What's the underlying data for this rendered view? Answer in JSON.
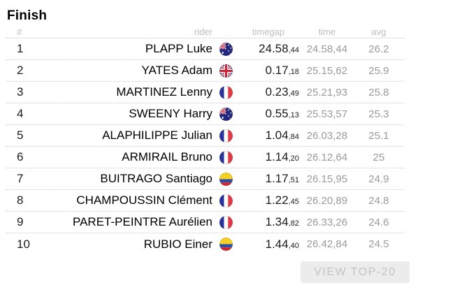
{
  "page": {
    "title": "Finish"
  },
  "table": {
    "headers": {
      "rank": "#",
      "rider": "rider",
      "timegap": "timegap",
      "time": "time",
      "avg": "avg"
    },
    "rows": [
      {
        "rank": "1",
        "rider": "PLAPP Luke",
        "country": "au",
        "country_name": "Australia",
        "timegap": "24.58",
        "timegap_dec": ",44",
        "time": "24.58,44",
        "avg": "26.2"
      },
      {
        "rank": "2",
        "rider": "YATES Adam",
        "country": "gb",
        "country_name": "Great Britain",
        "timegap": "0.17",
        "timegap_dec": ",18",
        "time": "25.15,62",
        "avg": "25.9"
      },
      {
        "rank": "3",
        "rider": "MARTINEZ Lenny",
        "country": "fr",
        "country_name": "France",
        "timegap": "0.23",
        "timegap_dec": ",49",
        "time": "25.21,93",
        "avg": "25.8"
      },
      {
        "rank": "4",
        "rider": "SWEENY Harry",
        "country": "au",
        "country_name": "Australia",
        "timegap": "0.55",
        "timegap_dec": ",13",
        "time": "25.53,57",
        "avg": "25.3"
      },
      {
        "rank": "5",
        "rider": "ALAPHILIPPE Julian",
        "country": "fr",
        "country_name": "France",
        "timegap": "1.04",
        "timegap_dec": ",84",
        "time": "26.03,28",
        "avg": "25.1"
      },
      {
        "rank": "6",
        "rider": "ARMIRAIL Bruno",
        "country": "fr",
        "country_name": "France",
        "timegap": "1.14",
        "timegap_dec": ",20",
        "time": "26.12,64",
        "avg": "25"
      },
      {
        "rank": "7",
        "rider": "BUITRAGO Santiago",
        "country": "co",
        "country_name": "Colombia",
        "timegap": "1.17",
        "timegap_dec": ",51",
        "time": "26.15,95",
        "avg": "24.9"
      },
      {
        "rank": "8",
        "rider": "CHAMPOUSSIN Clément",
        "country": "fr",
        "country_name": "France",
        "timegap": "1.22",
        "timegap_dec": ",45",
        "time": "26.20,89",
        "avg": "24.8"
      },
      {
        "rank": "9",
        "rider": "PARET-PEINTRE Aurélien",
        "country": "fr",
        "country_name": "France",
        "timegap": "1.34",
        "timegap_dec": ",82",
        "time": "26.33,26",
        "avg": "24.6"
      },
      {
        "rank": "10",
        "rider": "RUBIO Einer",
        "country": "co",
        "country_name": "Colombia",
        "timegap": "1.44",
        "timegap_dec": ",40",
        "time": "26.42,84",
        "avg": "24.5"
      }
    ]
  },
  "button": {
    "label": "VIEW TOP-20"
  },
  "colors": {
    "text_dark": "#1b1b1b",
    "text_gray": "#9a9a9a",
    "header_gray": "#bdbdbd",
    "border_dotted": "#cccccc",
    "button_bg": "#ececec",
    "button_text": "#c4c4c4"
  }
}
